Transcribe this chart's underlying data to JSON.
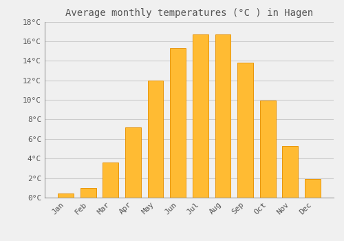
{
  "title": "Average monthly temperatures (°C ) in Hagen",
  "months": [
    "Jan",
    "Feb",
    "Mar",
    "Apr",
    "May",
    "Jun",
    "Jul",
    "Aug",
    "Sep",
    "Oct",
    "Nov",
    "Dec"
  ],
  "values": [
    0.4,
    1.0,
    3.6,
    7.2,
    12.0,
    15.3,
    16.7,
    16.7,
    13.8,
    9.9,
    5.3,
    1.9
  ],
  "bar_color": "#FFBB33",
  "bar_edge_color": "#E8960A",
  "background_color": "#F0F0F0",
  "grid_color": "#CCCCCC",
  "text_color": "#555555",
  "ylim": [
    0,
    18
  ],
  "yticks": [
    0,
    2,
    4,
    6,
    8,
    10,
    12,
    14,
    16,
    18
  ],
  "ytick_labels": [
    "0°C",
    "2°C",
    "4°C",
    "6°C",
    "8°C",
    "10°C",
    "12°C",
    "14°C",
    "16°C",
    "18°C"
  ],
  "title_fontsize": 10,
  "tick_fontsize": 8
}
